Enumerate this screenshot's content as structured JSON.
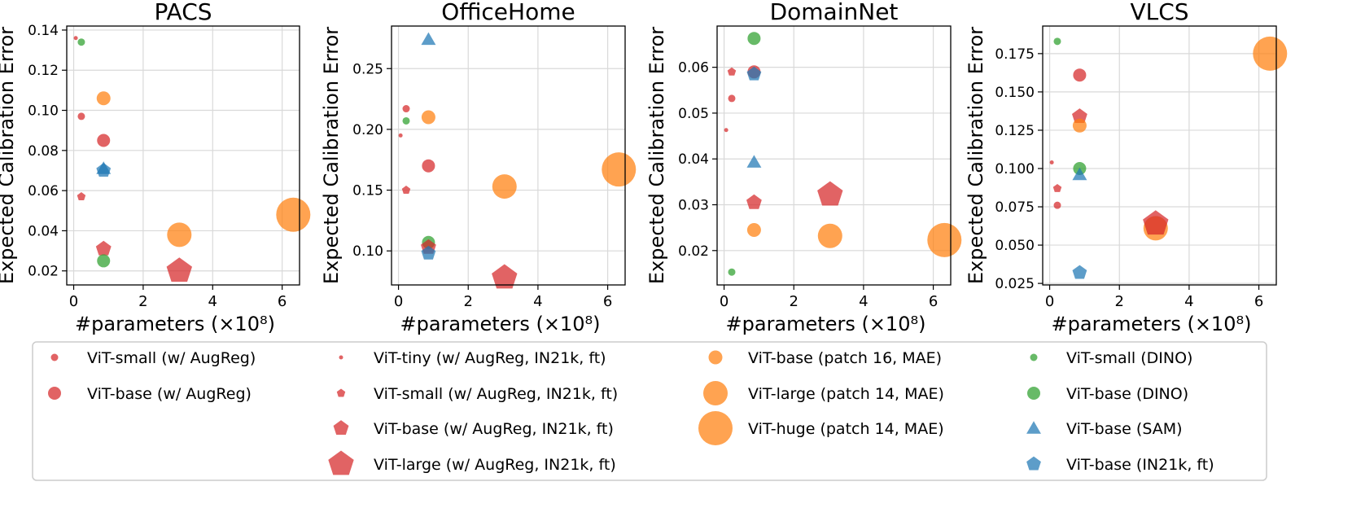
{
  "legend": {
    "entries": [
      {
        "id": "vit_small_augreg",
        "label": "ViT-small (w/ AugReg)",
        "marker": "circle",
        "color": "#d62728",
        "size": 4.5
      },
      {
        "id": "vit_base_augreg",
        "label": "ViT-base (w/ AugReg)",
        "marker": "circle",
        "color": "#d62728",
        "size": 8
      },
      {
        "id": "vit_tiny_in21k",
        "label": "ViT-tiny (w/ AugReg, IN21k, ft)",
        "marker": "circle",
        "color": "#d62728",
        "size": 2.5
      },
      {
        "id": "vit_small_in21k",
        "label": "ViT-small (w/ AugReg, IN21k, ft)",
        "marker": "pentagon",
        "color": "#d62728",
        "size": 5
      },
      {
        "id": "vit_base_in21k",
        "label": "ViT-base (w/ AugReg, IN21k, ft)",
        "marker": "pentagon",
        "color": "#d62728",
        "size": 9
      },
      {
        "id": "vit_large_in21k",
        "label": "ViT-large (w/ AugReg, IN21k, ft)",
        "marker": "pentagon",
        "color": "#d62728",
        "size": 15
      },
      {
        "id": "vit_base_mae",
        "label": "ViT-base (patch 16, MAE)",
        "marker": "circle",
        "color": "#ff7f0e",
        "size": 8.5
      },
      {
        "id": "vit_large_mae",
        "label": "ViT-large (patch 14, MAE)",
        "marker": "circle",
        "color": "#ff7f0e",
        "size": 15
      },
      {
        "id": "vit_huge_mae",
        "label": "ViT-huge (patch 14, MAE)",
        "marker": "circle",
        "color": "#ff7f0e",
        "size": 21
      },
      {
        "id": "vit_small_dino",
        "label": "ViT-small (DINO)",
        "marker": "circle",
        "color": "#2ca02c",
        "size": 4.5
      },
      {
        "id": "vit_base_dino",
        "label": "ViT-base (DINO)",
        "marker": "circle",
        "color": "#2ca02c",
        "size": 8
      },
      {
        "id": "vit_base_sam",
        "label": "ViT-base (SAM)",
        "marker": "triangle",
        "color": "#1f77b4",
        "size": 9
      },
      {
        "id": "vit_base_in21k_ft",
        "label": "ViT-base (IN21k, ft)",
        "marker": "pentagon",
        "color": "#1f77b4",
        "size": 8.5
      }
    ]
  },
  "chart_data": [
    {
      "type": "scatter",
      "title": "PACS",
      "xlabel": "#parameters (×10⁸)",
      "ylabel": "Expected Calibration Error",
      "xlim": [
        -0.2,
        6.5
      ],
      "ylim": [
        0.013,
        0.142
      ],
      "xticks": [
        "0",
        "2",
        "4",
        "6"
      ],
      "xtick_values": [
        0,
        2,
        4,
        6
      ],
      "yticks": [
        "0.02",
        "0.04",
        "0.06",
        "0.08",
        "0.10",
        "0.12",
        "0.14"
      ],
      "ytick_values": [
        0.02,
        0.04,
        0.06,
        0.08,
        0.1,
        0.12,
        0.14
      ],
      "grid": true,
      "points": [
        {
          "series": "vit_tiny_in21k",
          "x": 0.06,
          "y": 0.136
        },
        {
          "series": "vit_small_dino",
          "x": 0.22,
          "y": 0.134
        },
        {
          "series": "vit_small_augreg",
          "x": 0.22,
          "y": 0.097
        },
        {
          "series": "vit_small_in21k",
          "x": 0.22,
          "y": 0.057
        },
        {
          "series": "vit_base_mae",
          "x": 0.86,
          "y": 0.106
        },
        {
          "series": "vit_base_augreg",
          "x": 0.86,
          "y": 0.085
        },
        {
          "series": "vit_base_sam",
          "x": 0.86,
          "y": 0.071
        },
        {
          "series": "vit_base_in21k_ft",
          "x": 0.86,
          "y": 0.07
        },
        {
          "series": "vit_base_in21k",
          "x": 0.86,
          "y": 0.031
        },
        {
          "series": "vit_base_dino",
          "x": 0.86,
          "y": 0.025
        },
        {
          "series": "vit_large_mae",
          "x": 3.04,
          "y": 0.038
        },
        {
          "series": "vit_large_in21k",
          "x": 3.04,
          "y": 0.02
        },
        {
          "series": "vit_huge_mae",
          "x": 6.32,
          "y": 0.048
        }
      ]
    },
    {
      "type": "scatter",
      "title": "OfficeHome",
      "xlabel": "#parameters (×10⁸)",
      "ylabel": "Expected Calibration Error",
      "xlim": [
        -0.2,
        6.5
      ],
      "ylim": [
        0.072,
        0.285
      ],
      "xticks": [
        "0",
        "2",
        "4",
        "6"
      ],
      "xtick_values": [
        0,
        2,
        4,
        6
      ],
      "yticks": [
        "0.10",
        "0.15",
        "0.20",
        "0.25"
      ],
      "ytick_values": [
        0.1,
        0.15,
        0.2,
        0.25
      ],
      "grid": true,
      "points": [
        {
          "series": "vit_tiny_in21k",
          "x": 0.06,
          "y": 0.195
        },
        {
          "series": "vit_small_augreg",
          "x": 0.22,
          "y": 0.217
        },
        {
          "series": "vit_small_dino",
          "x": 0.22,
          "y": 0.207
        },
        {
          "series": "vit_small_in21k",
          "x": 0.22,
          "y": 0.15
        },
        {
          "series": "vit_base_sam",
          "x": 0.86,
          "y": 0.274
        },
        {
          "series": "vit_base_mae",
          "x": 0.86,
          "y": 0.21
        },
        {
          "series": "vit_base_augreg",
          "x": 0.86,
          "y": 0.17
        },
        {
          "series": "vit_base_dino",
          "x": 0.86,
          "y": 0.107
        },
        {
          "series": "vit_base_in21k",
          "x": 0.86,
          "y": 0.103
        },
        {
          "series": "vit_base_in21k_ft",
          "x": 0.86,
          "y": 0.098
        },
        {
          "series": "vit_large_mae",
          "x": 3.04,
          "y": 0.153
        },
        {
          "series": "vit_large_in21k",
          "x": 3.04,
          "y": 0.078
        },
        {
          "series": "vit_huge_mae",
          "x": 6.32,
          "y": 0.167
        }
      ]
    },
    {
      "type": "scatter",
      "title": "DomainNet",
      "xlabel": "#parameters (×10⁸)",
      "ylabel": "Expected Calibration Error",
      "xlim": [
        -0.2,
        6.5
      ],
      "ylim": [
        0.0125,
        0.069
      ],
      "xticks": [
        "0",
        "2",
        "4",
        "6"
      ],
      "xtick_values": [
        0,
        2,
        4,
        6
      ],
      "yticks": [
        "0.02",
        "0.03",
        "0.04",
        "0.05",
        "0.06"
      ],
      "ytick_values": [
        0.02,
        0.03,
        0.04,
        0.05,
        0.06
      ],
      "grid": true,
      "points": [
        {
          "series": "vit_tiny_in21k",
          "x": 0.06,
          "y": 0.0463
        },
        {
          "series": "vit_small_in21k",
          "x": 0.22,
          "y": 0.059
        },
        {
          "series": "vit_small_augreg",
          "x": 0.22,
          "y": 0.0532
        },
        {
          "series": "vit_small_dino",
          "x": 0.22,
          "y": 0.0153
        },
        {
          "series": "vit_base_dino",
          "x": 0.86,
          "y": 0.0663
        },
        {
          "series": "vit_base_augreg",
          "x": 0.86,
          "y": 0.059
        },
        {
          "series": "vit_base_in21k_ft",
          "x": 0.86,
          "y": 0.0585
        },
        {
          "series": "vit_base_sam",
          "x": 0.86,
          "y": 0.0393
        },
        {
          "series": "vit_base_in21k",
          "x": 0.86,
          "y": 0.0305
        },
        {
          "series": "vit_base_mae",
          "x": 0.86,
          "y": 0.0245
        },
        {
          "series": "vit_large_in21k",
          "x": 3.04,
          "y": 0.0322
        },
        {
          "series": "vit_large_mae",
          "x": 3.04,
          "y": 0.0232
        },
        {
          "series": "vit_huge_mae",
          "x": 6.32,
          "y": 0.0223
        }
      ]
    },
    {
      "type": "scatter",
      "title": "VLCS",
      "xlabel": "#parameters (×10⁸)",
      "ylabel": "Expected Calibration Error",
      "xlim": [
        -0.2,
        6.5
      ],
      "ylim": [
        0.024,
        0.193
      ],
      "xticks": [
        "0",
        "2",
        "4",
        "6"
      ],
      "xtick_values": [
        0,
        2,
        4,
        6
      ],
      "yticks": [
        "0.025",
        "0.050",
        "0.075",
        "0.100",
        "0.125",
        "0.150",
        "0.175"
      ],
      "ytick_values": [
        0.025,
        0.05,
        0.075,
        0.1,
        0.125,
        0.15,
        0.175
      ],
      "grid": true,
      "points": [
        {
          "series": "vit_tiny_in21k",
          "x": 0.06,
          "y": 0.104
        },
        {
          "series": "vit_small_dino",
          "x": 0.22,
          "y": 0.183
        },
        {
          "series": "vit_small_in21k",
          "x": 0.22,
          "y": 0.087
        },
        {
          "series": "vit_small_augreg",
          "x": 0.22,
          "y": 0.076
        },
        {
          "series": "vit_base_augreg",
          "x": 0.86,
          "y": 0.161
        },
        {
          "series": "vit_base_in21k",
          "x": 0.86,
          "y": 0.134
        },
        {
          "series": "vit_base_mae",
          "x": 0.86,
          "y": 0.128
        },
        {
          "series": "vit_base_dino",
          "x": 0.86,
          "y": 0.1
        },
        {
          "series": "vit_base_sam",
          "x": 0.86,
          "y": 0.096
        },
        {
          "series": "vit_base_in21k_ft",
          "x": 0.86,
          "y": 0.032
        },
        {
          "series": "vit_large_mae",
          "x": 3.04,
          "y": 0.061
        },
        {
          "series": "vit_large_in21k",
          "x": 3.04,
          "y": 0.064
        },
        {
          "series": "vit_huge_mae",
          "x": 6.32,
          "y": 0.175
        }
      ]
    }
  ]
}
